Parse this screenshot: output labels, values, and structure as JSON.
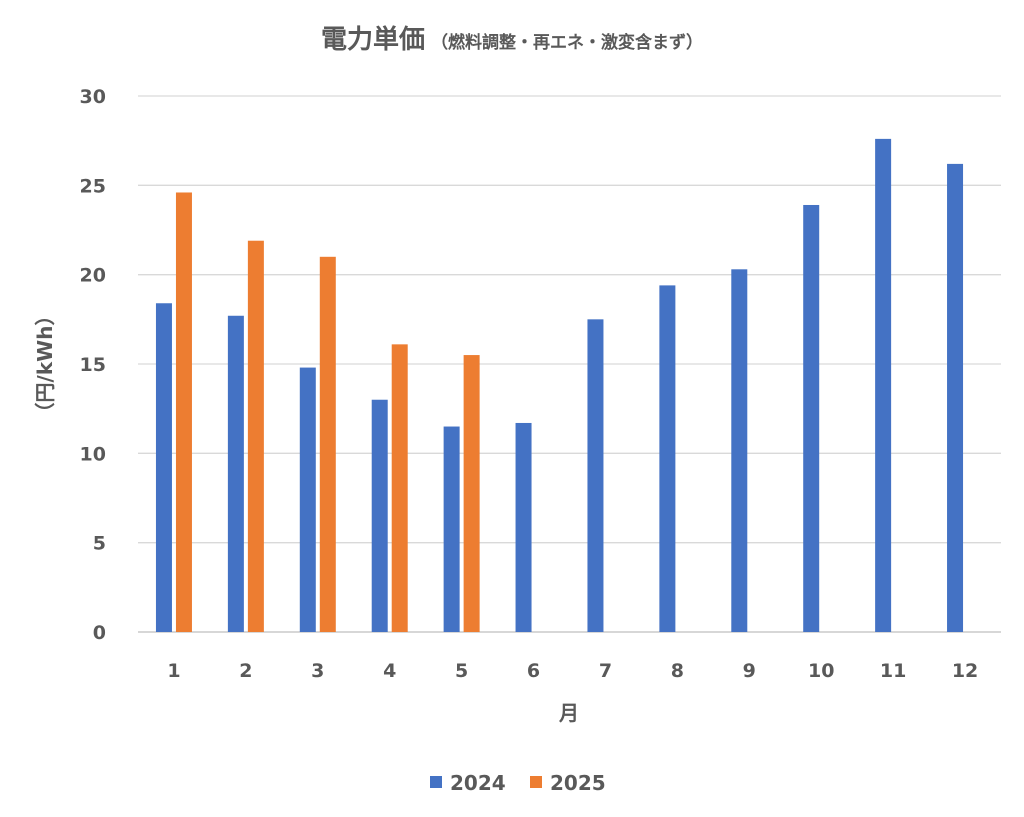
{
  "chart_data": {
    "type": "bar",
    "title": "電力単価",
    "subtitle": "（燃料調整・再エネ・激変含まず）",
    "xlabel": "月",
    "ylabel": "（円/kWh）",
    "categories": [
      "1",
      "2",
      "3",
      "4",
      "5",
      "6",
      "7",
      "8",
      "9",
      "10",
      "11",
      "12"
    ],
    "series": [
      {
        "name": "2024",
        "color": "#4472C4",
        "values": [
          18.4,
          17.7,
          14.8,
          13.0,
          11.5,
          11.7,
          17.5,
          19.4,
          20.3,
          23.9,
          27.6,
          26.2
        ]
      },
      {
        "name": "2025",
        "color": "#ED7D31",
        "values": [
          24.6,
          21.9,
          21.0,
          16.1,
          15.5,
          null,
          null,
          null,
          null,
          null,
          null,
          null
        ]
      }
    ],
    "ylim": [
      0,
      30
    ],
    "yticks": [
      "0",
      "5",
      "10",
      "15",
      "20",
      "25",
      "30"
    ],
    "grid": true,
    "legend": "bottom"
  }
}
